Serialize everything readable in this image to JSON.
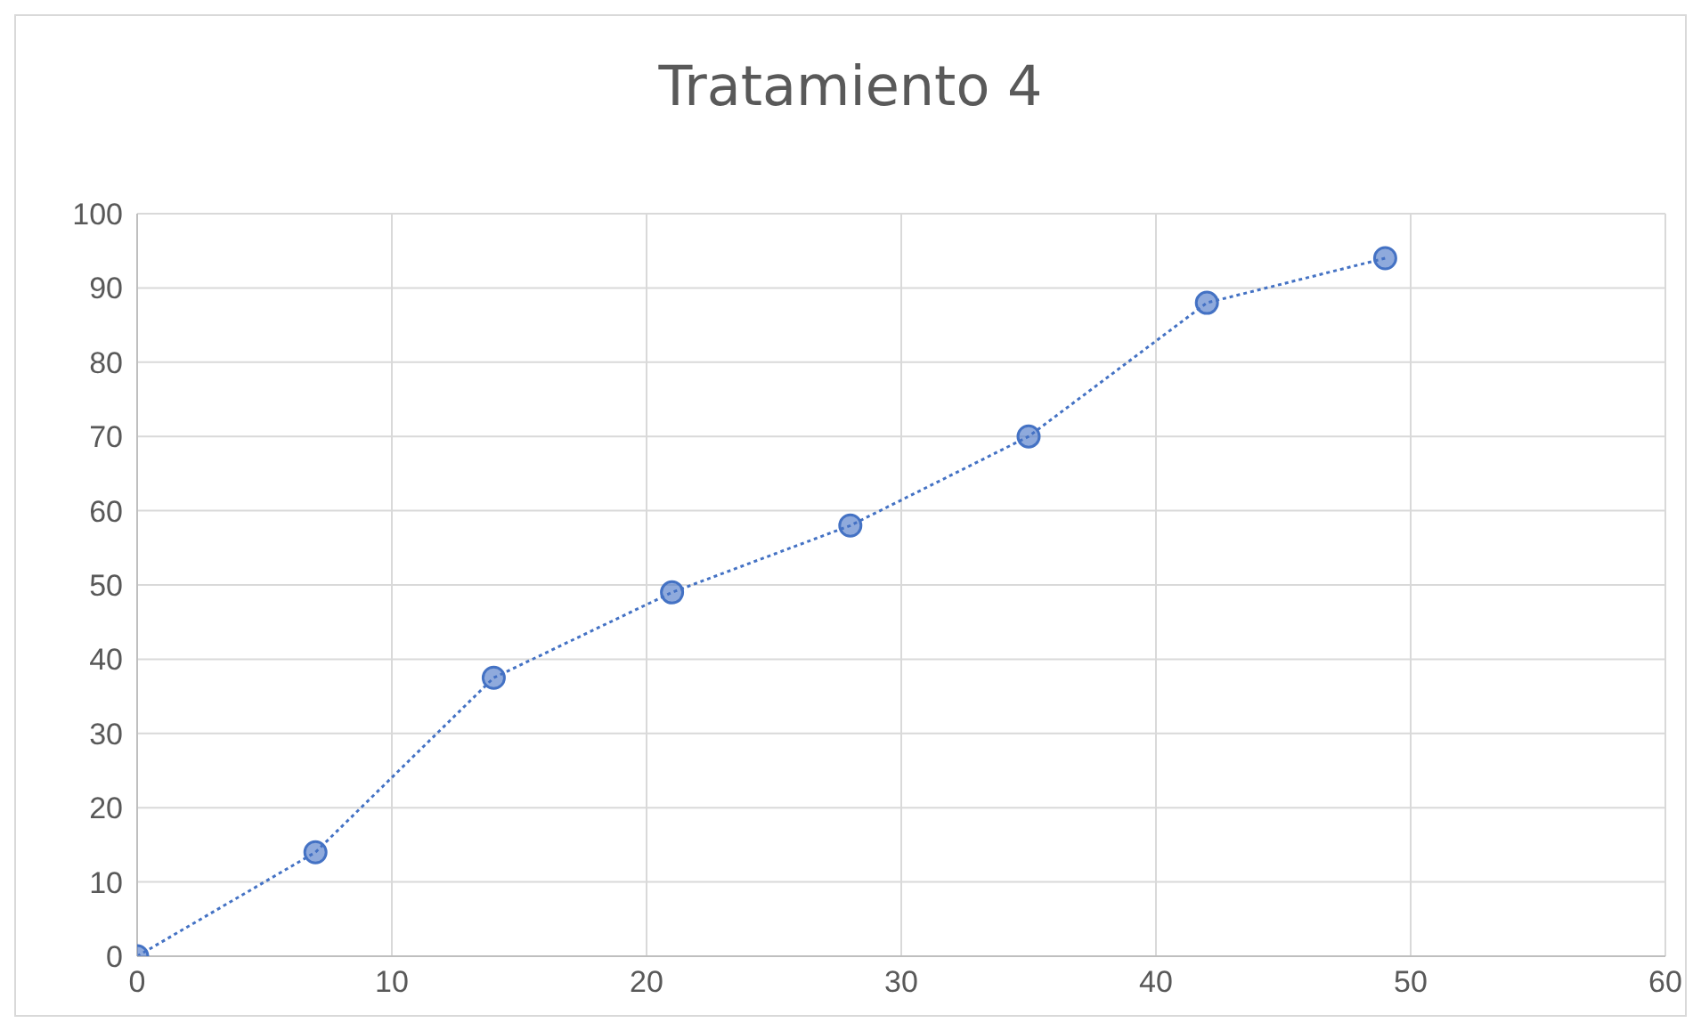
{
  "chart_data": {
    "type": "line",
    "title": "Tratamiento 4",
    "x": [
      0,
      7,
      14,
      21,
      28,
      35,
      42,
      49
    ],
    "series": [
      {
        "color": "#4472c4",
        "values": [
          0,
          14,
          37.5,
          49,
          58,
          70,
          88,
          94
        ]
      }
    ],
    "xlim": [
      0,
      60
    ],
    "xticks": [
      0,
      10,
      20,
      30,
      40,
      50,
      60
    ],
    "ylim": [
      0,
      100
    ],
    "yticks": [
      0,
      10,
      20,
      30,
      40,
      50,
      60,
      70,
      80,
      90,
      100
    ],
    "grid": true,
    "marker": "circle",
    "line_style": "dotted",
    "legend": false
  }
}
